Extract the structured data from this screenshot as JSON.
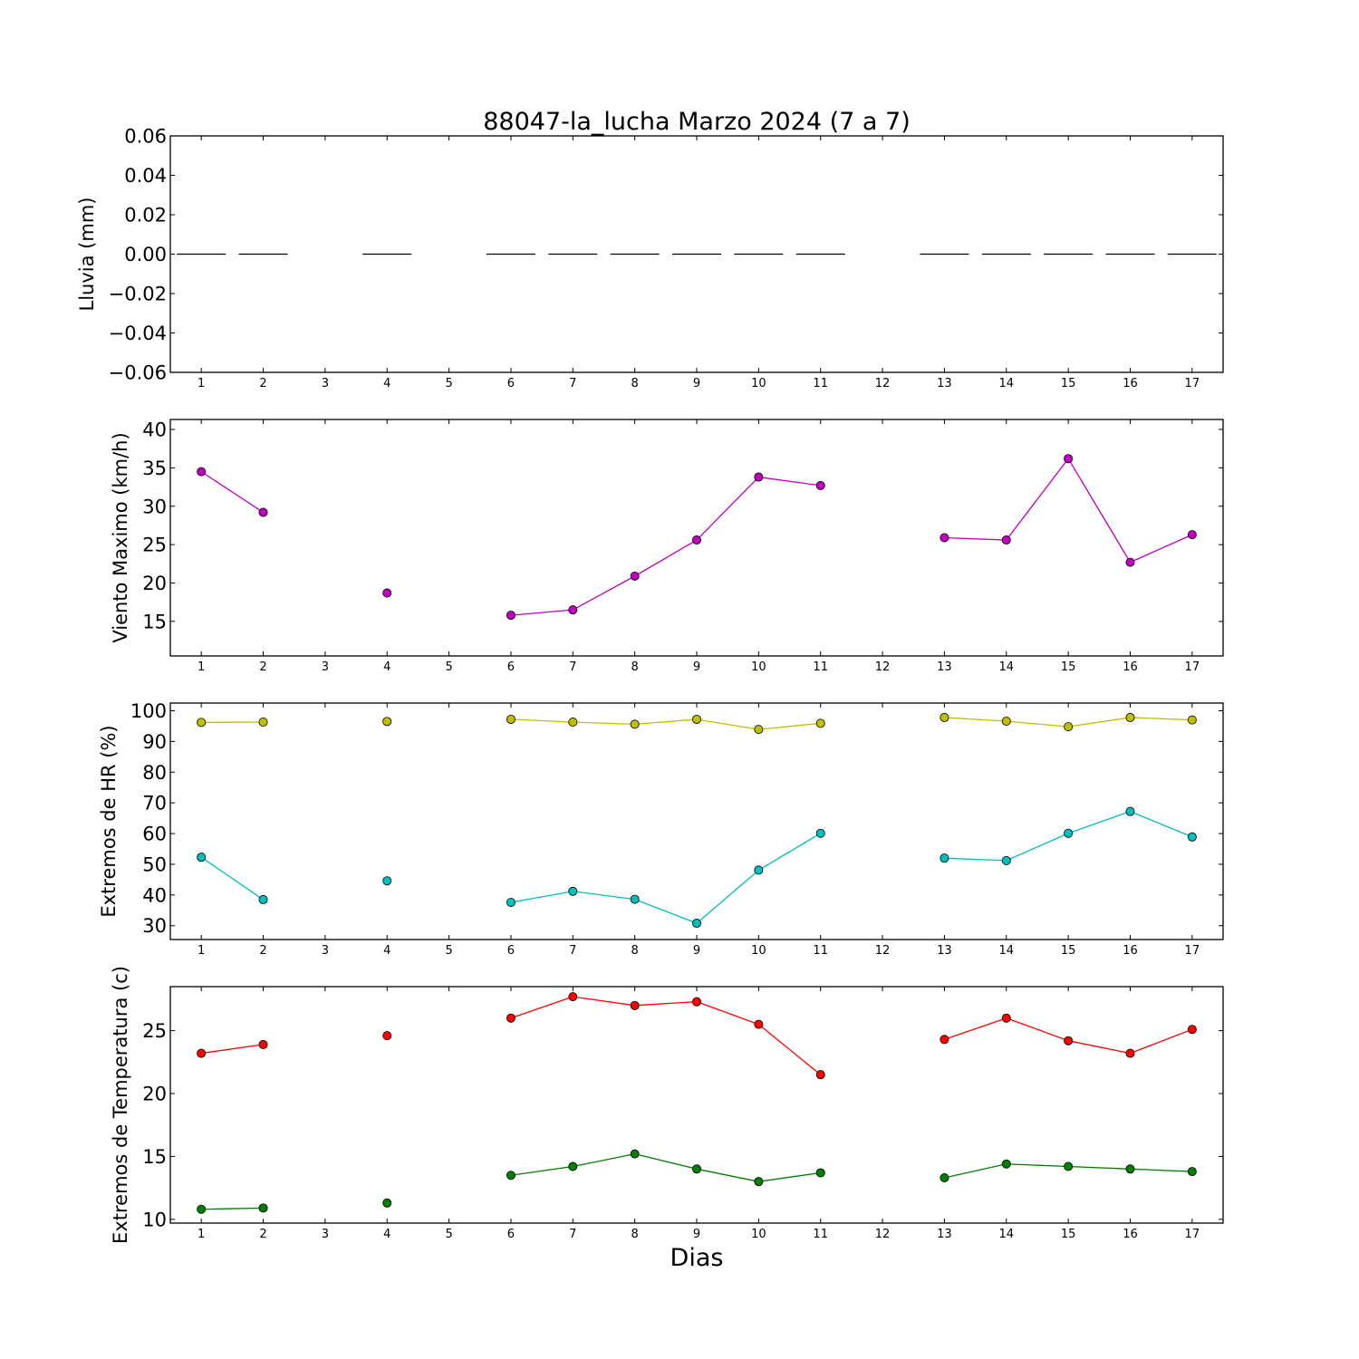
{
  "title": "88047-la_lucha Marzo 2024  (7 a 7)",
  "xlabel": "Dias",
  "chart_data": [
    {
      "type": "bar",
      "ylabel": "Lluvia (mm)",
      "ylim": [
        -0.06,
        0.06
      ],
      "xlim": [
        0.5,
        17.5
      ],
      "yticks": [
        "0.06",
        "0.04",
        "0.02",
        "0.00",
        "−0.02",
        "−0.04",
        "−0.06"
      ],
      "ytick_values": [
        0.06,
        0.04,
        0.02,
        0.0,
        -0.02,
        -0.04,
        -0.06
      ],
      "xticks": [
        "1",
        "2",
        "3",
        "4",
        "5",
        "6",
        "7",
        "8",
        "9",
        "10",
        "11",
        "12",
        "13",
        "14",
        "15",
        "16",
        "17"
      ],
      "x": [
        1,
        2,
        3,
        4,
        5,
        6,
        7,
        8,
        9,
        10,
        11,
        12,
        13,
        14,
        15,
        16,
        17
      ],
      "series": [
        {
          "color": "#000000",
          "values": [
            0,
            0,
            null,
            0,
            null,
            0,
            0,
            0,
            0,
            0,
            0,
            null,
            0,
            0,
            0,
            0,
            0
          ]
        }
      ]
    },
    {
      "type": "line",
      "ylabel": "Viento Maximo (km/h)",
      "ylim": [
        10.5,
        41.3
      ],
      "xlim": [
        0.5,
        17.5
      ],
      "yticks": [
        "40",
        "35",
        "30",
        "25",
        "20",
        "15"
      ],
      "ytick_values": [
        40,
        35,
        30,
        25,
        20,
        15
      ],
      "xticks": [
        "1",
        "2",
        "3",
        "4",
        "5",
        "6",
        "7",
        "8",
        "9",
        "10",
        "11",
        "12",
        "13",
        "14",
        "15",
        "16",
        "17"
      ],
      "x": [
        1,
        2,
        3,
        4,
        5,
        6,
        7,
        8,
        9,
        10,
        11,
        12,
        13,
        14,
        15,
        16,
        17
      ],
      "series": [
        {
          "color": "#bf00bf",
          "values": [
            34.5,
            29.2,
            null,
            18.7,
            null,
            15.8,
            16.5,
            20.9,
            25.6,
            33.8,
            32.7,
            null,
            25.9,
            25.6,
            36.2,
            22.7,
            26.3
          ]
        }
      ]
    },
    {
      "type": "line",
      "ylabel": "Extremos de HR (%)",
      "ylim": [
        25.5,
        102.5
      ],
      "xlim": [
        0.5,
        17.5
      ],
      "yticks": [
        "100",
        "90",
        "80",
        "70",
        "60",
        "50",
        "40",
        "30"
      ],
      "ytick_values": [
        100,
        90,
        80,
        70,
        60,
        50,
        40,
        30
      ],
      "xticks": [
        "1",
        "2",
        "3",
        "4",
        "5",
        "6",
        "7",
        "8",
        "9",
        "10",
        "11",
        "12",
        "13",
        "14",
        "15",
        "16",
        "17"
      ],
      "x": [
        1,
        2,
        3,
        4,
        5,
        6,
        7,
        8,
        9,
        10,
        11,
        12,
        13,
        14,
        15,
        16,
        17
      ],
      "series": [
        {
          "color": "#bfbf00",
          "values": [
            96.2,
            96.3,
            null,
            96.5,
            null,
            97.2,
            96.3,
            95.6,
            97.2,
            93.9,
            95.9,
            null,
            97.8,
            96.6,
            94.8,
            97.8,
            97.0
          ]
        },
        {
          "color": "#00bfbf",
          "values": [
            52.3,
            38.5,
            null,
            44.6,
            null,
            37.6,
            41.2,
            38.6,
            30.8,
            48.1,
            60.1,
            null,
            52.0,
            51.2,
            60.1,
            67.2,
            58.9
          ]
        }
      ]
    },
    {
      "type": "line",
      "ylabel": "Extremos de Temperatura (c)",
      "ylim": [
        9.7,
        28.5
      ],
      "xlim": [
        0.5,
        17.5
      ],
      "yticks": [
        "25",
        "20",
        "15",
        "10"
      ],
      "ytick_values": [
        25,
        20,
        15,
        10
      ],
      "xticks": [
        "1",
        "2",
        "3",
        "4",
        "5",
        "6",
        "7",
        "8",
        "9",
        "10",
        "11",
        "12",
        "13",
        "14",
        "15",
        "16",
        "17"
      ],
      "x": [
        1,
        2,
        3,
        4,
        5,
        6,
        7,
        8,
        9,
        10,
        11,
        12,
        13,
        14,
        15,
        16,
        17
      ],
      "series": [
        {
          "color": "#ff0000",
          "values": [
            23.2,
            23.9,
            null,
            24.6,
            null,
            26.0,
            27.7,
            27.0,
            27.3,
            25.5,
            21.5,
            null,
            24.3,
            26.0,
            24.2,
            23.2,
            25.1
          ]
        },
        {
          "color": "#007f00",
          "values": [
            10.8,
            10.9,
            null,
            11.3,
            null,
            13.5,
            14.2,
            15.2,
            14.0,
            13.0,
            13.7,
            null,
            13.3,
            14.4,
            14.2,
            14.0,
            13.8
          ]
        }
      ]
    }
  ]
}
